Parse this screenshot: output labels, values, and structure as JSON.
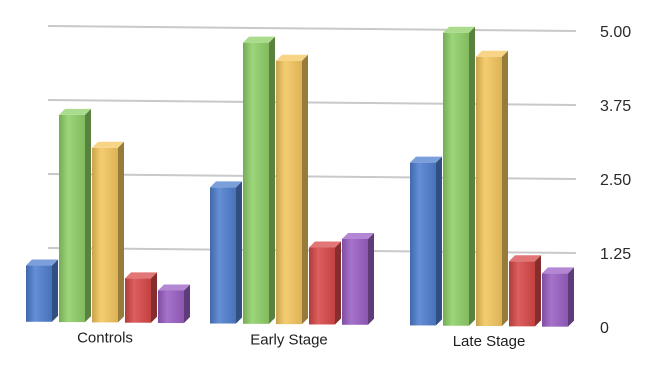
{
  "chart_data": {
    "type": "bar",
    "title": "",
    "xlabel": "",
    "ylabel": "",
    "ylim": [
      0,
      5
    ],
    "grid": true,
    "legend": "none",
    "y_ticks": [
      "0",
      "1.25",
      "2.50",
      "3.75",
      "5.00"
    ],
    "categories": [
      "Controls",
      "Early Stage",
      "Late Stage"
    ],
    "series": [
      {
        "color": "#4f7fcf",
        "values": [
          0.95,
          2.3,
          2.75
        ]
      },
      {
        "color": "#8fd068",
        "values": [
          3.5,
          4.75,
          4.95
        ]
      },
      {
        "color": "#f4c65e",
        "values": [
          2.95,
          4.45,
          4.55
        ]
      },
      {
        "color": "#d84848",
        "values": [
          0.75,
          1.3,
          1.1
        ]
      },
      {
        "color": "#9a5fc4",
        "values": [
          0.55,
          1.45,
          0.9
        ]
      }
    ]
  }
}
